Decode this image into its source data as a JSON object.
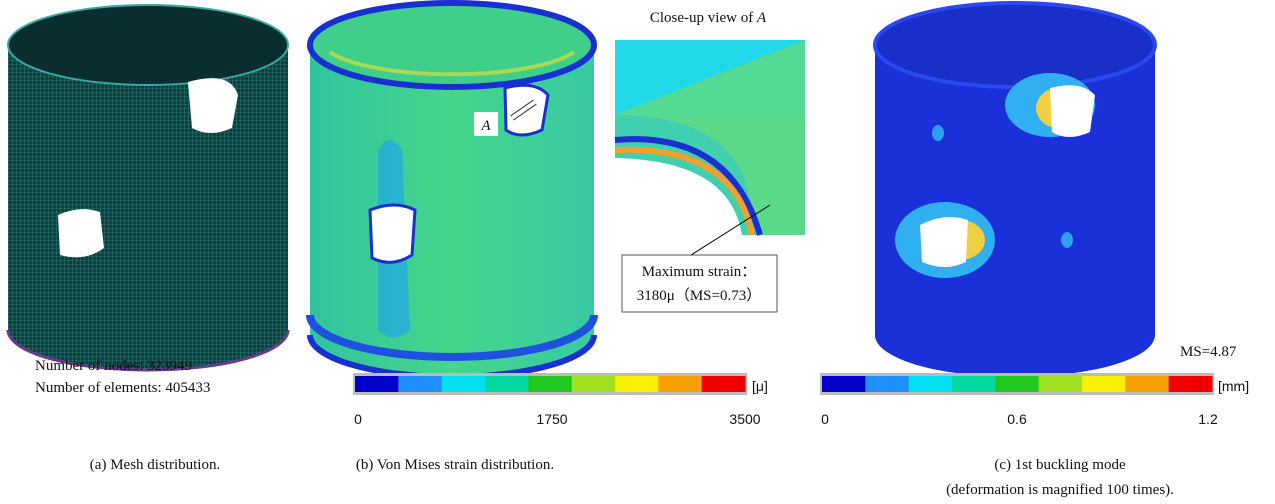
{
  "panels": [
    {
      "caption": "(a) Mesh distribution.",
      "stats": [
        "Number of nodes: 323949",
        "Number of elements: 405433"
      ]
    },
    {
      "caption": "(b) Von Mises strain distribution.",
      "marker": "A",
      "closeup_title": {
        "text": "Close-up view of ",
        "emphasis": "A"
      },
      "callout": [
        "Maximum strain：",
        "3180μ（MS=0.73）"
      ],
      "colorbar": {
        "unit": "[μ]",
        "ticks": [
          "0",
          "1750",
          "3500"
        ]
      }
    },
    {
      "caption": [
        "(c) 1st buckling mode",
        "(deformation is magnified 100 times)."
      ],
      "ms": "MS=4.87",
      "colorbar": {
        "unit": "[mm]",
        "ticks": [
          "0",
          "0.6",
          "1.2"
        ]
      }
    }
  ]
}
